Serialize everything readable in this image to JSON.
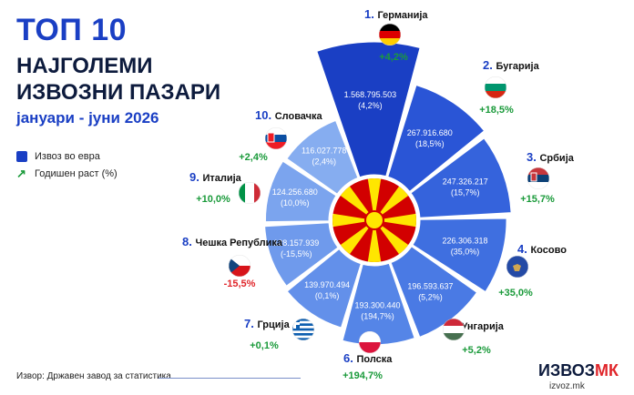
{
  "header": {
    "title_line1": "ТОП 10",
    "title_line2": "НАЈГОЛЕМИ",
    "title_line3": "ИЗВОЗНИ ПАЗАРИ",
    "subtitle": "јануари - јуни 2026"
  },
  "legend": {
    "export_label": "Извоз во евра",
    "growth_label": "Годишен раст (%)",
    "colors": {
      "export": "#1a3fc4",
      "growth": "#1a9a3a"
    }
  },
  "footer": {
    "source": "Извор: Државен завод за статистика",
    "brand_main": "ИЗВОЗ",
    "brand_accent": "МК",
    "brand_site": "izvoz.mk"
  },
  "center_icon": "north-macedonia-flag",
  "chart_data": {
    "type": "polar-bar",
    "value_unit": "EUR",
    "categories": [
      "Германија",
      "Бугарија",
      "Србија",
      "Косово",
      "Унгарија",
      "Полска",
      "Грција",
      "Чешка Република",
      "Италија",
      "Словачка"
    ],
    "ranks": [
      "1.",
      "2.",
      "3.",
      "4.",
      "5.",
      "6.",
      "7.",
      "8.",
      "9.",
      "10."
    ],
    "values": [
      1568795503,
      267916680,
      247326217,
      226306318,
      196593637,
      193300440,
      139970494,
      128157939,
      124256680,
      116027778
    ],
    "value_labels": [
      "1.568.795.503",
      "267.916.680",
      "247.326.217",
      "226.306.318",
      "196.593.637",
      "193.300.440",
      "139.970.494",
      "128.157.939",
      "124.256.680",
      "116.027.778"
    ],
    "growth": [
      4.2,
      18.5,
      15.7,
      35.0,
      5.2,
      194.7,
      0.1,
      -15.5,
      10.0,
      2.4
    ],
    "growth_labels": [
      "+4,2%",
      "+18,5%",
      "+15,7%",
      "+35,0%",
      "+5,2%",
      "+194,7%",
      "+0,1%",
      "-15,5%",
      "+10,0%",
      "+2,4%"
    ],
    "growth_in_bar": [
      "(4,2%)",
      "(18,5%)",
      "(15,7%)",
      "(35,0%)",
      "(5,2%)",
      "(194,7%)",
      "(0,1%)",
      "(-15,5%)",
      "(10,0%)",
      "(2,4%)"
    ],
    "flags": [
      "germany-flag",
      "bulgaria-flag",
      "serbia-flag",
      "kosovo-flag",
      "hungary-flag",
      "poland-flag",
      "greece-flag",
      "czech-republic-flag",
      "italy-flag",
      "slovakia-flag"
    ],
    "colors": {
      "bars": [
        "#1a3fc4",
        "#2a55d6",
        "#3563dc",
        "#3f6fe0",
        "#4a7ae4",
        "#5585e7",
        "#6390ea",
        "#6f9aec",
        "#7ba4ee",
        "#86adf0"
      ],
      "growth_positive": "#1a9a3a",
      "growth_negative": "#e0262b",
      "rank_text": "#1a3fc4"
    }
  }
}
